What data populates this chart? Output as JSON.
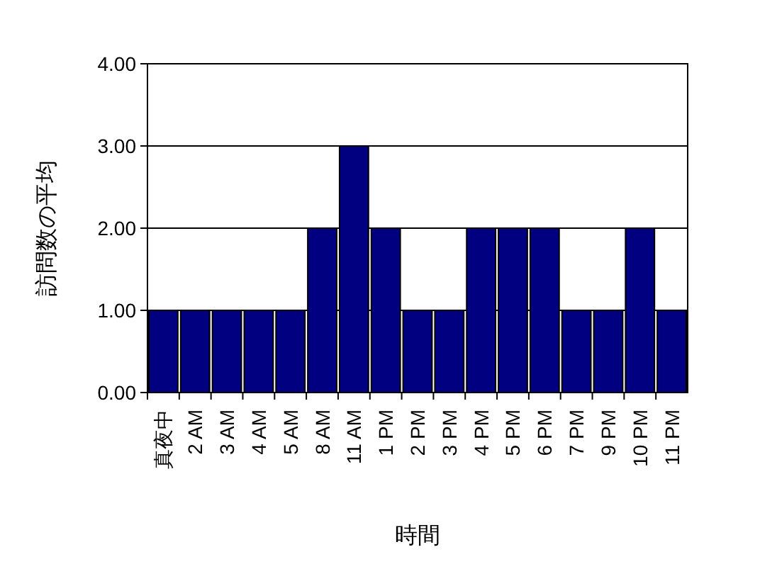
{
  "chart_data": {
    "type": "bar",
    "xlabel": "時間",
    "ylabel": "訪問数の平均",
    "categories": [
      "真夜中",
      "2 AM",
      "3 AM",
      "4 AM",
      "5 AM",
      "8 AM",
      "11 AM",
      "1 PM",
      "2 PM",
      "3 PM",
      "4 PM",
      "5 PM",
      "6 PM",
      "7 PM",
      "9 PM",
      "10 PM",
      "11 PM"
    ],
    "values": [
      1,
      1,
      1,
      1,
      1,
      2,
      3,
      2,
      1,
      1,
      2,
      2,
      2,
      1,
      1,
      2,
      1
    ],
    "color": "#000080",
    "ylim": [
      0,
      4
    ],
    "yticks": [
      {
        "value": 0,
        "label": "0.00"
      },
      {
        "value": 1,
        "label": "1.00"
      },
      {
        "value": 2,
        "label": "2.00"
      },
      {
        "value": 3,
        "label": "3.00"
      },
      {
        "value": 4,
        "label": "4.00"
      }
    ],
    "grid": "y"
  }
}
